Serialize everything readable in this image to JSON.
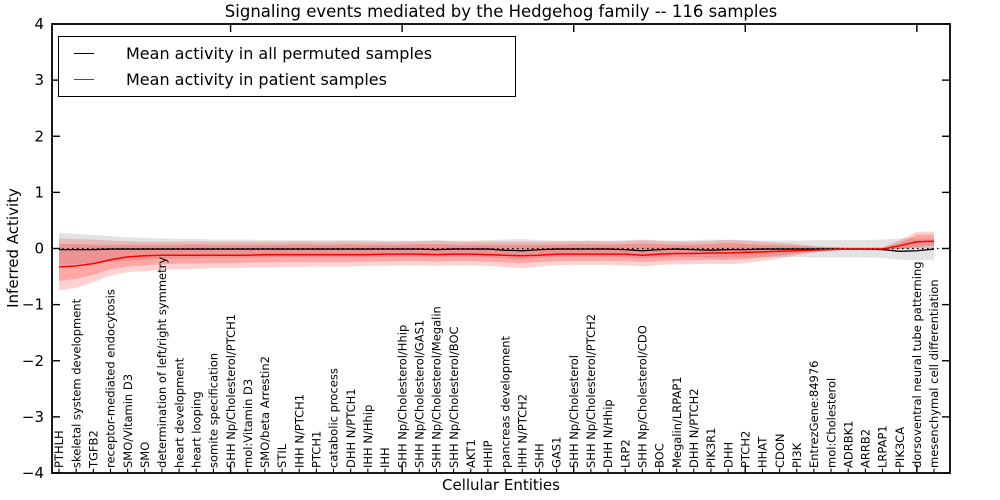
{
  "page": {
    "background": "#ffffff"
  },
  "chart_data": {
    "type": "line",
    "title": "Signaling events mediated by the Hedgehog family -- 116 samples",
    "xlabel": "Cellular Entities",
    "ylabel": "Inferred Activity",
    "ylim": [
      -4,
      4
    ],
    "y_ticks": [
      -4,
      -3,
      -2,
      -1,
      0,
      1,
      2,
      3,
      4
    ],
    "x_major_ticks": [
      10,
      20,
      30,
      40,
      50
    ],
    "grid": false,
    "legend_position": "upper left",
    "zero_line": {
      "value": 0,
      "style": "dotted",
      "color": "#000000"
    },
    "categories": [
      "PTHLH",
      "skeletal system development",
      "TGFB2",
      "receptor-mediated endocytosis",
      "SMO/Vitamin D3",
      "SMO",
      "determination of left/right symmetry",
      "heart development",
      "heart looping",
      "somite specification",
      "SHH Np/Cholesterol/PTCH1",
      "mol:Vitamin D3",
      "SMO/beta Arrestin2",
      "STIL",
      "IHH N/PTCH1",
      "PTCH1",
      "catabolic process",
      "DHH N/PTCH1",
      "IHH N/Hhip",
      "IHH",
      "SHH Np/Cholesterol/Hhip",
      "SHH Np/Cholesterol/GAS1",
      "SHH Np/Cholesterol/Megalin",
      "SHH Np/Cholesterol/BOC",
      "AKT1",
      "HHIP",
      "pancreas development",
      "IHH N/PTCH2",
      "SHH",
      "GAS1",
      "SHH Np/Cholesterol",
      "SHH Np/Cholesterol/PTCH2",
      "DHH N/Hhip",
      "LRP2",
      "SHH Np/Cholesterol/CDO",
      "BOC",
      "Megalin/LRPAP1",
      "DHH N/PTCH2",
      "PIK3R1",
      "DHH",
      "PTCH2",
      "HHAT",
      "CDON",
      "PI3K",
      "EntrezGene:84976",
      "mol:Cholesterol",
      "ADRBK1",
      "ARRB2",
      "LRPAP1",
      "PIK3CA",
      "dorsoventral neural tube patterning",
      "mesenchymal cell differentiation"
    ],
    "series": [
      {
        "id": "permuted",
        "label": "Mean activity in all permuted samples",
        "color": "#000000",
        "band_color": "#999999",
        "band_opacity": 0.28,
        "mean": [
          -0.02,
          -0.02,
          -0.02,
          -0.01,
          -0.01,
          -0.01,
          -0.01,
          -0.01,
          -0.01,
          -0.01,
          -0.01,
          -0.01,
          -0.01,
          -0.01,
          -0.01,
          -0.01,
          -0.01,
          -0.01,
          -0.01,
          -0.01,
          -0.01,
          -0.01,
          -0.02,
          -0.01,
          -0.01,
          -0.01,
          -0.03,
          -0.04,
          -0.02,
          -0.01,
          -0.01,
          -0.01,
          -0.01,
          -0.02,
          -0.04,
          -0.02,
          -0.01,
          -0.02,
          -0.03,
          -0.02,
          -0.02,
          -0.01,
          -0.01,
          -0.01,
          -0.01,
          -0.01,
          -0.01,
          -0.01,
          -0.02,
          -0.05,
          -0.04,
          -0.01
        ],
        "band_low": [
          -0.3,
          -0.28,
          -0.26,
          -0.24,
          -0.22,
          -0.2,
          -0.19,
          -0.18,
          -0.18,
          -0.17,
          -0.17,
          -0.17,
          -0.16,
          -0.16,
          -0.16,
          -0.16,
          -0.16,
          -0.16,
          -0.16,
          -0.15,
          -0.15,
          -0.15,
          -0.16,
          -0.15,
          -0.15,
          -0.16,
          -0.18,
          -0.2,
          -0.17,
          -0.15,
          -0.15,
          -0.15,
          -0.15,
          -0.16,
          -0.18,
          -0.16,
          -0.15,
          -0.16,
          -0.17,
          -0.16,
          -0.16,
          -0.15,
          -0.15,
          -0.15,
          -0.16,
          -0.16,
          -0.16,
          -0.16,
          -0.17,
          -0.2,
          -0.21,
          -0.2
        ],
        "band_high": [
          0.28,
          0.26,
          0.24,
          0.22,
          0.2,
          0.19,
          0.18,
          0.17,
          0.17,
          0.16,
          0.16,
          0.16,
          0.15,
          0.15,
          0.15,
          0.15,
          0.15,
          0.15,
          0.15,
          0.14,
          0.14,
          0.14,
          0.15,
          0.14,
          0.14,
          0.15,
          0.16,
          0.17,
          0.15,
          0.14,
          0.14,
          0.14,
          0.14,
          0.15,
          0.16,
          0.15,
          0.14,
          0.15,
          0.16,
          0.15,
          0.15,
          0.14,
          0.14,
          0.14,
          0.15,
          0.15,
          0.15,
          0.15,
          0.16,
          0.18,
          0.18,
          0.17
        ]
      },
      {
        "id": "patient",
        "label": "Mean activity in patient samples",
        "color": "#ff0000",
        "band_color": "#ff0000",
        "band_opacity": 0.18,
        "mean": [
          -0.33,
          -0.31,
          -0.27,
          -0.2,
          -0.15,
          -0.13,
          -0.12,
          -0.12,
          -0.12,
          -0.12,
          -0.12,
          -0.12,
          -0.11,
          -0.11,
          -0.11,
          -0.11,
          -0.11,
          -0.11,
          -0.11,
          -0.1,
          -0.1,
          -0.1,
          -0.11,
          -0.1,
          -0.1,
          -0.11,
          -0.12,
          -0.13,
          -0.12,
          -0.1,
          -0.1,
          -0.1,
          -0.1,
          -0.1,
          -0.12,
          -0.1,
          -0.09,
          -0.09,
          -0.08,
          -0.08,
          -0.07,
          -0.06,
          -0.05,
          -0.04,
          -0.03,
          -0.02,
          -0.01,
          -0.01,
          -0.01,
          0.05,
          0.12,
          0.13
        ],
        "band_low": [
          -0.75,
          -0.7,
          -0.6,
          -0.48,
          -0.42,
          -0.4,
          -0.38,
          -0.37,
          -0.36,
          -0.35,
          -0.35,
          -0.34,
          -0.34,
          -0.33,
          -0.33,
          -0.32,
          -0.32,
          -0.32,
          -0.31,
          -0.31,
          -0.3,
          -0.3,
          -0.31,
          -0.3,
          -0.3,
          -0.31,
          -0.33,
          -0.35,
          -0.32,
          -0.3,
          -0.29,
          -0.29,
          -0.29,
          -0.3,
          -0.32,
          -0.29,
          -0.28,
          -0.28,
          -0.27,
          -0.28,
          -0.26,
          -0.22,
          -0.18,
          -0.12,
          -0.07,
          -0.04,
          -0.02,
          -0.02,
          -0.02,
          -0.01,
          0.0,
          0.02
        ],
        "band_high": [
          0.18,
          0.17,
          0.16,
          0.14,
          0.13,
          0.12,
          0.12,
          0.12,
          0.13,
          0.12,
          0.12,
          0.12,
          0.12,
          0.12,
          0.13,
          0.12,
          0.12,
          0.13,
          0.12,
          0.12,
          0.12,
          0.13,
          0.14,
          0.12,
          0.12,
          0.12,
          0.12,
          0.12,
          0.12,
          0.12,
          0.13,
          0.14,
          0.12,
          0.13,
          0.15,
          0.13,
          0.12,
          0.12,
          0.13,
          0.16,
          0.14,
          0.12,
          0.1,
          0.08,
          0.05,
          0.03,
          0.02,
          0.02,
          0.02,
          0.15,
          0.3,
          0.3
        ],
        "band_inner_low": [
          -0.58,
          -0.54,
          -0.47,
          -0.37,
          -0.32,
          -0.3,
          -0.28,
          -0.27,
          -0.27,
          -0.26,
          -0.26,
          -0.25,
          -0.25,
          -0.24,
          -0.24,
          -0.24,
          -0.24,
          -0.24,
          -0.23,
          -0.23,
          -0.22,
          -0.22,
          -0.23,
          -0.22,
          -0.22,
          -0.23,
          -0.25,
          -0.26,
          -0.24,
          -0.22,
          -0.22,
          -0.22,
          -0.22,
          -0.22,
          -0.24,
          -0.22,
          -0.21,
          -0.21,
          -0.2,
          -0.21,
          -0.19,
          -0.16,
          -0.13,
          -0.09,
          -0.05,
          -0.03,
          -0.02,
          -0.02,
          -0.02,
          -0.01,
          0.03,
          0.05
        ],
        "band_inner_high": [
          0.08,
          0.08,
          0.07,
          0.07,
          0.07,
          0.07,
          0.07,
          0.07,
          0.08,
          0.07,
          0.07,
          0.07,
          0.07,
          0.07,
          0.08,
          0.07,
          0.07,
          0.08,
          0.07,
          0.07,
          0.07,
          0.08,
          0.08,
          0.07,
          0.07,
          0.07,
          0.07,
          0.07,
          0.07,
          0.07,
          0.08,
          0.08,
          0.07,
          0.08,
          0.09,
          0.08,
          0.07,
          0.07,
          0.08,
          0.1,
          0.08,
          0.07,
          0.06,
          0.05,
          0.03,
          0.02,
          0.01,
          0.01,
          0.01,
          0.1,
          0.25,
          0.25
        ]
      }
    ]
  }
}
